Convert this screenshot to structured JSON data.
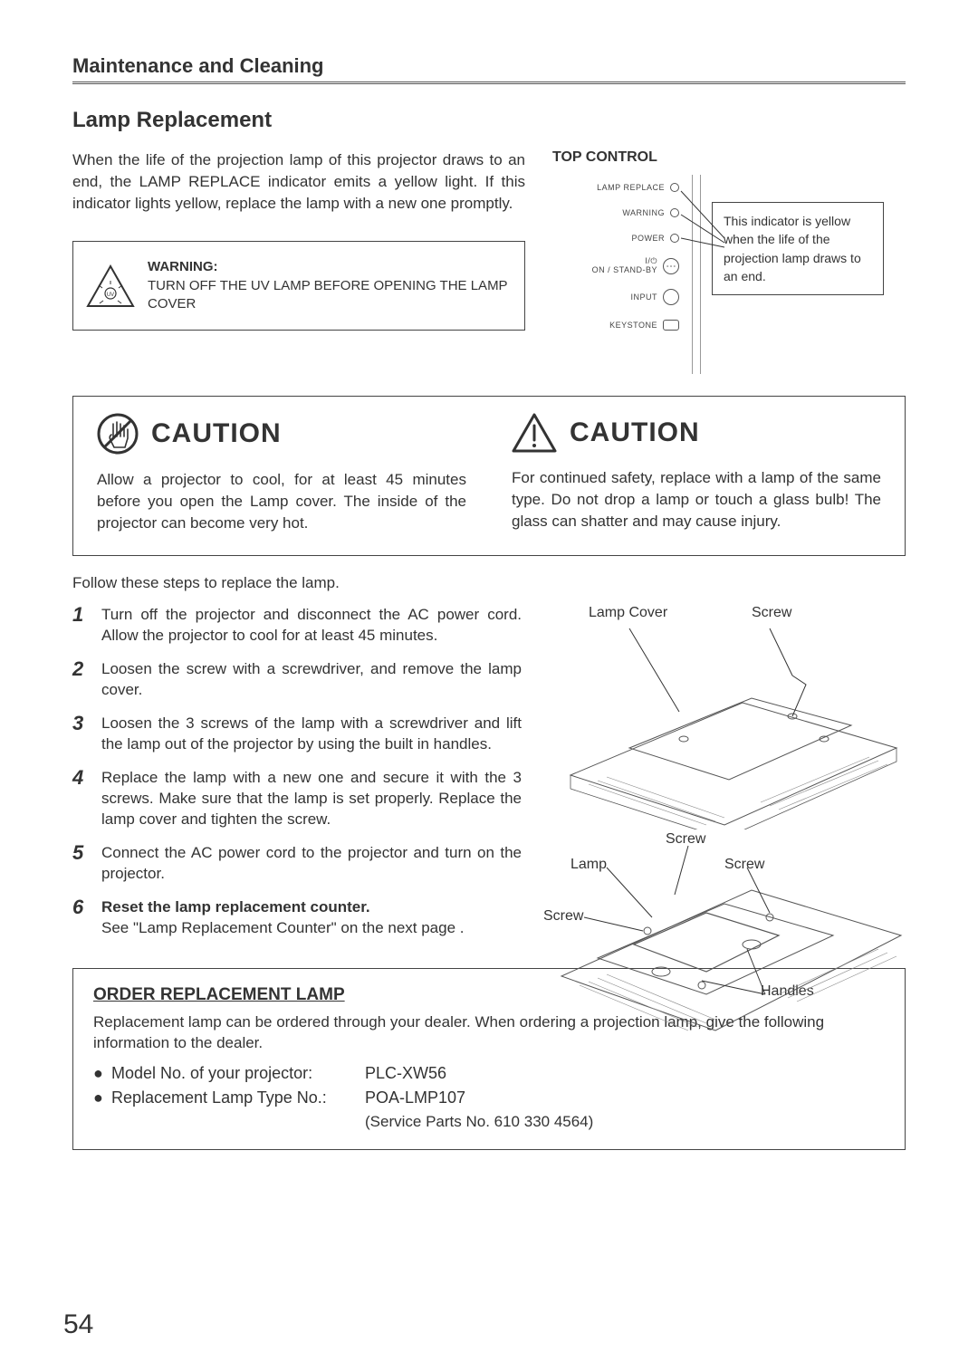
{
  "header": "Maintenance and Cleaning",
  "subheading": "Lamp Replacement",
  "intro": "When the life of the projection lamp of this projector draws to an end, the LAMP REPLACE indicator emits a yellow light.  If this indicator lights yellow, replace the lamp with a new one promptly.",
  "warning": {
    "label": "WARNING:",
    "text": "TURN OFF THE UV LAMP BEFORE OPENING THE LAMP COVER"
  },
  "top_control": {
    "title": "TOP CONTROL",
    "rows": {
      "lamp_replace": "LAMP REPLACE",
      "warning": "WARNING",
      "power": "POWER",
      "standby_top": "I/⏻",
      "standby": "ON / STAND-BY",
      "input": "INPUT",
      "keystone": "KEYSTONE"
    },
    "callout": "This indicator is yellow when the life of the projection lamp draws to an end."
  },
  "caution": {
    "title": "CAUTION",
    "left": "Allow a projector to cool, for at least 45 minutes before you open the Lamp cover. The inside of the projector can become very hot.",
    "right": "For continued safety, replace with a lamp of the same type.  Do not drop a lamp or touch a glass bulb!  The glass can shatter and may cause injury."
  },
  "follow": "Follow these steps to replace the lamp.",
  "steps": [
    {
      "n": "1",
      "text": "Turn off the projector and disconnect the AC power cord.  Allow the projector to cool for at least 45 minutes."
    },
    {
      "n": "2",
      "text": "Loosen the screw with a screwdriver, and remove the lamp cover."
    },
    {
      "n": "3",
      "text": "Loosen the 3 screws of the lamp with a screwdriver and lift the lamp out of the projector by using the built in handles."
    },
    {
      "n": "4",
      "text": "Replace the lamp with a new one and secure it with the 3 screws.  Make sure that the lamp is set properly.  Replace the lamp cover and tighten the screw."
    },
    {
      "n": "5",
      "text": "Connect the AC power cord to the projector and turn on the projector."
    },
    {
      "n": "6",
      "bold": "Reset the lamp replacement counter.",
      "text": "See \"Lamp Replacement Counter\" on the next page ."
    }
  ],
  "diagram_labels": {
    "lamp_cover": "Lamp Cover",
    "screw": "Screw",
    "lamp": "Lamp",
    "handles": "Handles"
  },
  "order": {
    "title": "ORDER REPLACEMENT LAMP",
    "intro": "Replacement lamp can be ordered through your dealer.  When ordering a projection lamp, give the following information to the dealer.",
    "rows": [
      {
        "label": "Model No. of your projector:",
        "value": "PLC-XW56"
      },
      {
        "label": "Replacement Lamp Type No.:",
        "value": "POA-LMP107"
      }
    ],
    "service": "(Service Parts No. 610 330 4564)"
  },
  "page": "54",
  "colors": {
    "text": "#333333",
    "border": "#444444",
    "stroke": "#555555",
    "light": "#999999"
  }
}
